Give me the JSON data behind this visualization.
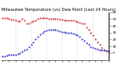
{
  "title": "M. Milwaukee Temperature (vs) Dew Point (Last 24 Hours)",
  "temp_color": "#cc0000",
  "dew_color": "#0000cc",
  "bg_color": "#ffffff",
  "grid_color": "#888888",
  "ylim": [
    -10,
    60
  ],
  "yticks": [
    0,
    10,
    20,
    30,
    40,
    50,
    60
  ],
  "ytick_labels": [
    "0",
    "10",
    "20",
    "30",
    "40",
    "50",
    ""
  ],
  "n_points": 49,
  "temp_data": [
    52,
    51,
    51,
    50,
    49,
    49,
    48,
    47,
    47,
    50,
    48,
    44,
    44,
    46,
    47,
    48,
    50,
    51,
    52,
    52,
    51,
    50,
    50,
    50,
    50,
    50,
    49,
    49,
    48,
    48,
    48,
    48,
    48,
    47,
    46,
    45,
    44,
    43,
    38,
    34,
    30,
    26,
    20,
    16,
    12,
    8,
    5,
    3,
    2
  ],
  "dew_data": [
    -5,
    -5,
    -4,
    -3,
    -3,
    -2,
    -2,
    -1,
    0,
    2,
    4,
    6,
    9,
    12,
    16,
    20,
    24,
    27,
    30,
    32,
    33,
    34,
    34,
    34,
    34,
    33,
    32,
    31,
    31,
    30,
    30,
    30,
    29,
    28,
    26,
    24,
    21,
    18,
    15,
    12,
    9,
    8,
    7,
    6,
    5,
    4,
    4,
    3,
    3
  ],
  "vline_positions": [
    6,
    13,
    20,
    27,
    34,
    41
  ],
  "text_color": "#000000",
  "title_fontsize": 3.8,
  "tick_fontsize": 3.2,
  "ylabel_fontsize": 3.2,
  "marker_size": 0.9
}
